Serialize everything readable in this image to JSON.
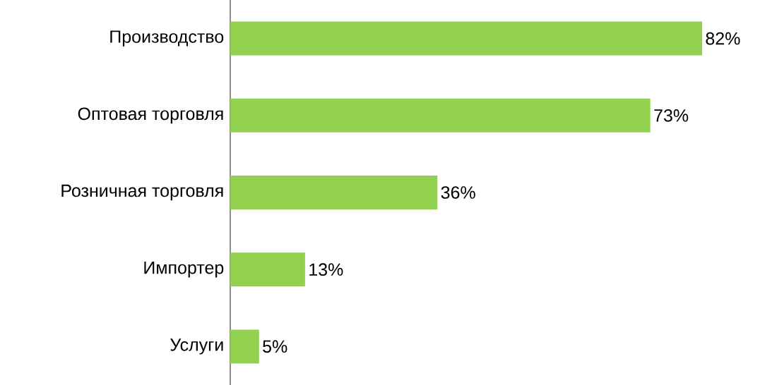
{
  "chart_data": {
    "type": "bar",
    "orientation": "horizontal",
    "categories": [
      "Производство",
      "Оптовая торговля",
      "Розничная торговля",
      "Импортер",
      "Услуги"
    ],
    "values": [
      82,
      73,
      36,
      13,
      5
    ],
    "value_labels": [
      "82%",
      "73%",
      "36%",
      "13%",
      "5%"
    ],
    "color": "#92d050",
    "tick_labels": "y"
  }
}
